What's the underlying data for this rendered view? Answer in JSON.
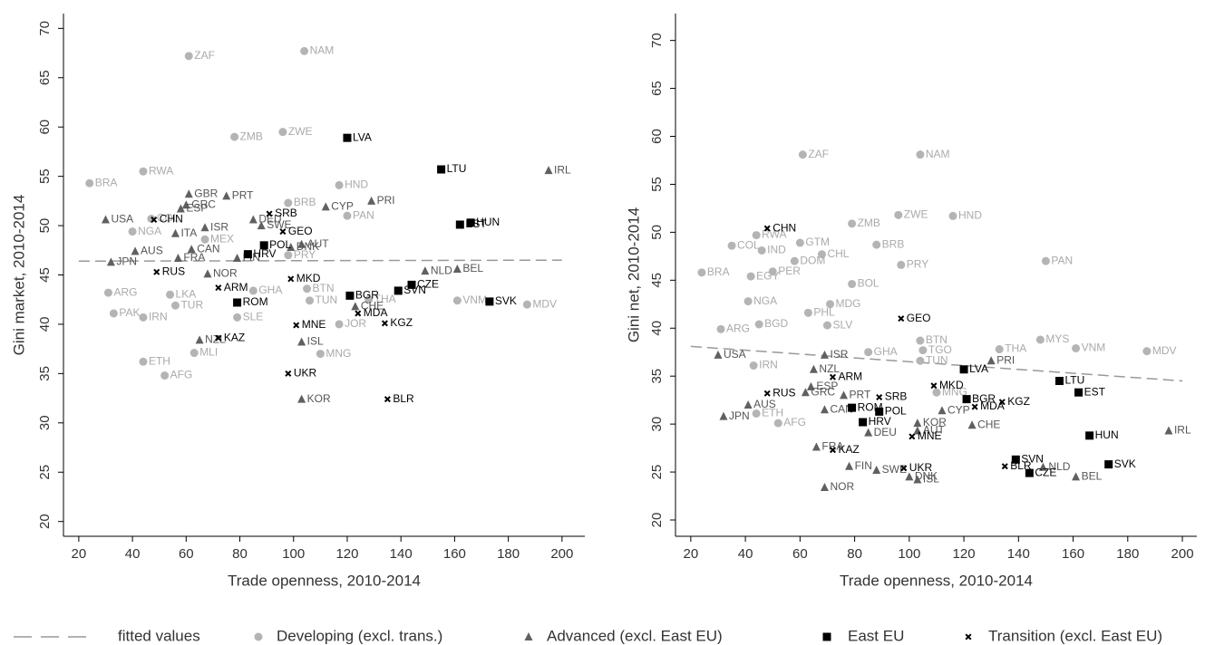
{
  "chart_data": [
    {
      "type": "scatter",
      "x_label": "Trade openness, 2010-2014",
      "y_label": "Gini market, 2010-2014",
      "xlim": [
        14.3,
        208.5
      ],
      "ylim": [
        18.5,
        71.5
      ],
      "xticks": [
        20,
        40,
        60,
        80,
        100,
        120,
        140,
        160,
        180,
        200
      ],
      "yticks": [
        20,
        25,
        30,
        35,
        40,
        45,
        50,
        55,
        60,
        65,
        70
      ],
      "series": [
        {
          "name": "fitted values",
          "type": "line",
          "dashed": true,
          "color": "#999999",
          "x": [
            20,
            200
          ],
          "values": [
            46.4,
            46.5
          ]
        },
        {
          "name": "Developing (excl. trans.)",
          "marker": "circle",
          "color": "#b4b4b4",
          "labels": [
            "ZAF",
            "NAM",
            "ZMB",
            "ZWE",
            "BRA",
            "RWA",
            "HND",
            "BRB",
            "PAN",
            "COL",
            "NGA",
            "MEX",
            "ARG",
            "PAK",
            "IRN",
            "LKA",
            "TUR",
            "ETH",
            "AFG",
            "MLI",
            "SLE",
            "GHA",
            "TUN",
            "JOR",
            "MNG",
            "THA",
            "VNM",
            "MDV",
            "PRY",
            "BTN"
          ],
          "x": [
            61,
            104,
            78,
            96,
            24,
            44,
            117,
            98,
            120,
            47,
            40,
            67,
            31,
            33,
            44,
            54,
            56,
            44,
            52,
            63,
            79,
            85,
            106,
            117,
            110,
            128,
            161,
            187,
            98,
            105
          ],
          "values": [
            67.2,
            67.7,
            59,
            59.5,
            54.3,
            55.5,
            54.1,
            52.3,
            51,
            50.7,
            49.4,
            48.6,
            43.2,
            41.1,
            40.7,
            43,
            41.9,
            36.2,
            34.8,
            37.1,
            40.7,
            43.4,
            42.4,
            40,
            37,
            42.5,
            42.4,
            42,
            47,
            43.6
          ]
        },
        {
          "name": "Advanced (excl. East EU)",
          "marker": "triangle",
          "color": "#606060",
          "labels": [
            "USA",
            "AUS",
            "JPN",
            "ITA",
            "GBR",
            "PRT",
            "GRC",
            "ESP",
            "ISR",
            "CAN",
            "FRA",
            "NOR",
            "DEU",
            "SWE",
            "CYP",
            "PRI",
            "AUT",
            "DNK",
            "FIN",
            "NLD",
            "BEL",
            "CHE",
            "ISL",
            "NZL",
            "KOR",
            "IRL"
          ],
          "x": [
            30,
            41,
            32,
            56,
            61,
            75,
            60,
            58,
            67,
            62,
            57,
            68,
            85,
            88,
            112,
            129,
            103,
            99,
            79,
            149,
            161,
            123,
            103,
            65,
            103,
            195
          ],
          "values": [
            50.6,
            47.4,
            46.3,
            49.2,
            53.2,
            53,
            52.1,
            51.7,
            49.8,
            47.6,
            46.7,
            45.1,
            50.6,
            50,
            51.9,
            52.5,
            48.1,
            47.8,
            46.7,
            45.4,
            45.6,
            41.8,
            38.2,
            38.4,
            32.4,
            55.6
          ]
        },
        {
          "name": "East EU",
          "marker": "square",
          "color": "#000000",
          "labels": [
            "LVA",
            "LTU",
            "EST",
            "HUN",
            "POL",
            "HRV",
            "ROM",
            "BGR",
            "CZE",
            "SVN",
            "SVK"
          ],
          "x": [
            120,
            155,
            162,
            166,
            89,
            83,
            79,
            121,
            144,
            139,
            173
          ],
          "values": [
            58.9,
            55.7,
            50.1,
            50.3,
            48,
            47.1,
            42.2,
            42.9,
            44,
            43.4,
            42.3
          ]
        },
        {
          "name": "Transition (excl. East EU)",
          "marker": "x",
          "color": "#000000",
          "labels": [
            "CHN",
            "RUS",
            "SRB",
            "GEO",
            "MKD",
            "ARM",
            "KAZ",
            "MNE",
            "MDA",
            "KGZ",
            "UKR",
            "BLR"
          ],
          "x": [
            48,
            49,
            91,
            96,
            99,
            72,
            72,
            101,
            124,
            134,
            98,
            135
          ],
          "values": [
            50.6,
            45.3,
            51.2,
            49.4,
            44.6,
            43.7,
            38.6,
            39.9,
            41.1,
            40.1,
            35,
            32.4
          ]
        }
      ]
    },
    {
      "type": "scatter",
      "x_label": "Trade openness, 2010-2014",
      "y_label": "Gini net, 2010-2014",
      "xlim": [
        14.4,
        205.3
      ],
      "ylim": [
        18.3,
        72.8
      ],
      "xticks": [
        20,
        40,
        60,
        80,
        100,
        120,
        140,
        160,
        180,
        200
      ],
      "yticks": [
        20,
        25,
        30,
        35,
        40,
        45,
        50,
        55,
        60,
        65,
        70
      ],
      "series": [
        {
          "type": "line",
          "dashed": true,
          "color": "#999999",
          "x": [
            20,
            200
          ],
          "values": [
            38.1,
            34.5
          ]
        },
        {
          "marker": "circle",
          "color": "#b4b4b4",
          "labels": [
            "ZAF",
            "NAM",
            "ZMB",
            "ZWE",
            "HND",
            "RWA",
            "COL",
            "GTM",
            "IND",
            "CHL",
            "BRB",
            "DOM",
            "PRY",
            "PAN",
            "BRA",
            "EGY",
            "PER",
            "BOL",
            "NGA",
            "MDG",
            "PHL",
            "ARG",
            "BGD",
            "SLV",
            "BTN",
            "TGO",
            "THA",
            "MYS",
            "VNM",
            "MDV",
            "GHA",
            "TUN",
            "IRN",
            "ETH",
            "AFG",
            "MNG"
          ],
          "x": [
            61,
            104,
            79,
            96,
            116,
            44,
            35,
            60,
            46,
            68,
            88,
            58,
            97,
            150,
            24,
            42,
            50,
            79,
            41,
            71,
            63,
            31,
            45,
            70,
            104,
            105,
            133,
            148,
            161,
            187,
            85,
            104,
            43,
            44,
            52,
            110
          ],
          "values": [
            58.1,
            58.1,
            50.9,
            51.8,
            51.7,
            49.7,
            48.6,
            48.9,
            48.1,
            47.7,
            48.7,
            47,
            46.6,
            47,
            45.8,
            45.4,
            45.9,
            44.6,
            42.8,
            42.5,
            41.6,
            39.9,
            40.4,
            40.3,
            38.7,
            37.7,
            37.8,
            38.8,
            37.9,
            37.6,
            37.5,
            36.6,
            36.1,
            31.1,
            30.1,
            33.3
          ]
        },
        {
          "marker": "triangle",
          "color": "#606060",
          "labels": [
            "USA",
            "ISR",
            "NZL",
            "PRI",
            "ESP",
            "GRC",
            "PRT",
            "AUS",
            "JPN",
            "CAN",
            "FRA",
            "DEU",
            "KOR",
            "AUT",
            "CYP",
            "CHE",
            "FIN",
            "SWE",
            "DNK",
            "ISL",
            "NOR",
            "BEL",
            "NLD",
            "IRL"
          ],
          "x": [
            30,
            69,
            65,
            130,
            64,
            62,
            76,
            41,
            32,
            69,
            66,
            85,
            103,
            103,
            112,
            123,
            78,
            88,
            100,
            103,
            69,
            161,
            149,
            195
          ],
          "values": [
            37.2,
            37.2,
            35.7,
            36.6,
            33.9,
            33.3,
            33,
            32,
            30.8,
            31.5,
            27.6,
            29.1,
            30.1,
            29.3,
            31.4,
            29.9,
            25.6,
            25.2,
            24.5,
            24.2,
            23.4,
            24.5,
            25.5,
            29.3
          ]
        },
        {
          "marker": "square",
          "color": "#000000",
          "labels": [
            "LVA",
            "LTU",
            "EST",
            "BGR",
            "ROM",
            "POL",
            "HRV",
            "HUN",
            "SVN",
            "SVK",
            "CZE"
          ],
          "x": [
            120,
            155,
            162,
            121,
            79,
            89,
            83,
            166,
            139,
            173,
            144
          ],
          "values": [
            35.7,
            34.5,
            33.3,
            32.6,
            31.7,
            31.3,
            30.2,
            28.8,
            26.3,
            25.8,
            24.9
          ]
        },
        {
          "marker": "x",
          "color": "#000000",
          "labels": [
            "CHN",
            "GEO",
            "RUS",
            "ARM",
            "SRB",
            "MKD",
            "KGZ",
            "MDA",
            "MNE",
            "KAZ",
            "UKR",
            "BLR"
          ],
          "x": [
            48,
            97,
            48,
            72,
            89,
            109,
            134,
            124,
            101,
            72,
            98,
            135
          ],
          "values": [
            50.4,
            41,
            33.2,
            34.9,
            32.8,
            34,
            32.3,
            31.8,
            28.7,
            27.3,
            25.4,
            25.6
          ]
        }
      ]
    }
  ]
}
